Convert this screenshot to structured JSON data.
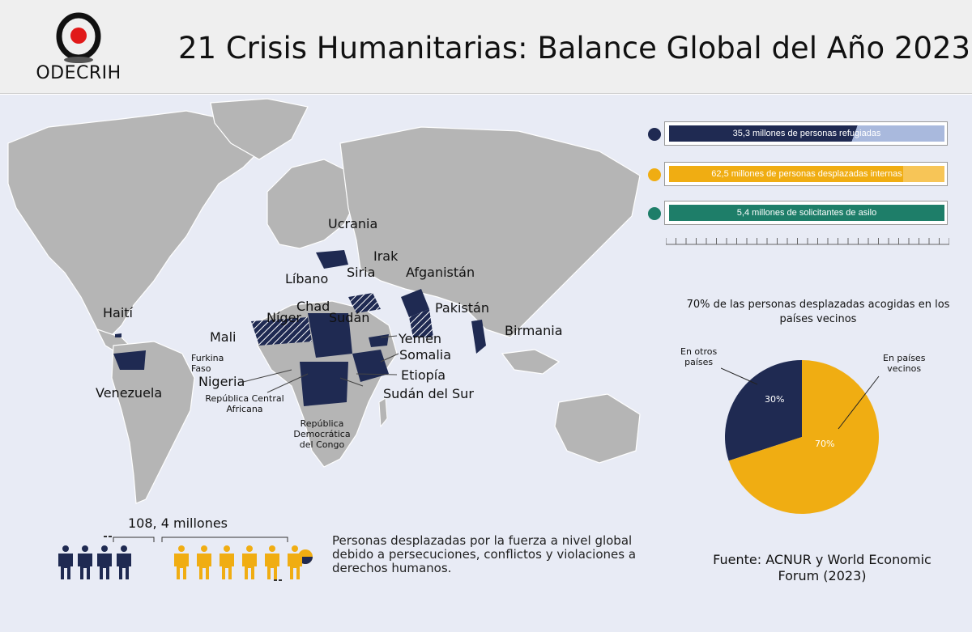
{
  "header": {
    "logo_text": "ODECRIH",
    "title": "21 Crisis Humanitarias: Balance Global del Año 2023"
  },
  "colors": {
    "navy": "#1f2a52",
    "amber": "#f0ad12",
    "teal": "#1e7e69",
    "light_blue": "#a9b9dd",
    "light_amber": "#f7c557",
    "land": "#b5b5b5",
    "sea": "#e8ebf5"
  },
  "map": {
    "countries": {
      "ucrania": "Ucrania",
      "irak": "Irak",
      "siria": "Siria",
      "afganistan": "Afganistán",
      "libano": "Líbano",
      "chad": "Chad",
      "niger": "Níger",
      "pakistan": "Pakistán",
      "haiti": "Haití",
      "mali": "Mali",
      "sudan": "Sudán",
      "birmania": "Birmania",
      "yemen": "Yemen",
      "furkina": "Furkina\nFaso",
      "somalia": "Somalia",
      "nigeria": "Nigeria",
      "etiopia": "Etiopía",
      "venezuela": "Venezuela",
      "rca": "República Central\nAfricana",
      "sudan_sur": "Sudán del Sur",
      "rdc": "República\nDemocrática\ndel Congo"
    }
  },
  "stats": [
    {
      "label": "35,3 millones de personas refugiadas",
      "color": "#1f2a52",
      "fill": "#1f2a52",
      "light": "#a9b9dd"
    },
    {
      "label": "62,5 millones de personas desplazadas internas",
      "color": "#f0ad12",
      "fill": "#f0ad12",
      "light": "#f7c557"
    },
    {
      "label": "5,4 millones de solicitantes de asilo",
      "color": "#1e7e69",
      "fill": "#1e7e69",
      "light": "#1e7e69"
    }
  ],
  "pie": {
    "title": "70% de las personas desplazadas acogidas en los países vecinos",
    "otros_label": "En otros\npaíses",
    "vecinos_label": "En países\nvecinos",
    "otros_pct": "30%",
    "vecinos_pct": "70%"
  },
  "chart_data": {
    "type": "pie",
    "title": "70% de las personas desplazadas acogidas en los países vecinos",
    "slices": [
      {
        "name": "En otros países",
        "value": 30,
        "color": "#1f2a52"
      },
      {
        "name": "En países vecinos",
        "value": 70,
        "color": "#f0ad12"
      }
    ]
  },
  "people": {
    "total": "108, 4 millones",
    "navy_count": 4,
    "amber_count": 6,
    "description": "Personas desplazadas por la fuerza a nivel global debido a persecuciones, conflictos y violaciones a derechos humanos."
  },
  "source": "Fuente: ACNUR y World Economic Forum (2023)"
}
